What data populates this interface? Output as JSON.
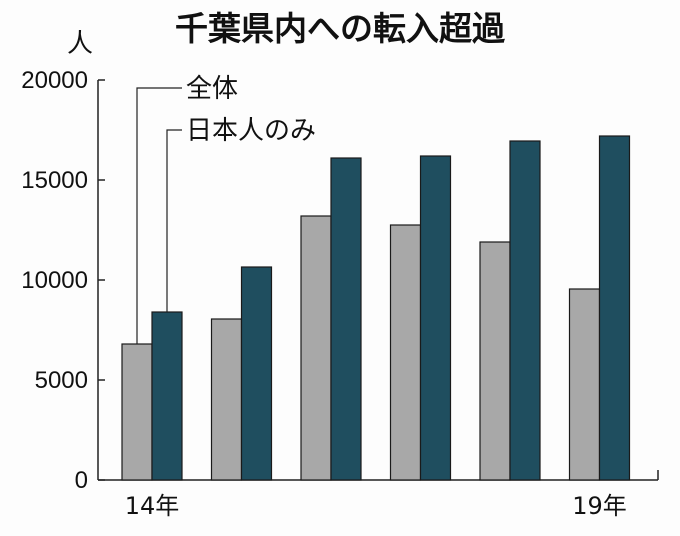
{
  "chart_data": {
    "type": "bar",
    "title": "千葉県内への転入超過",
    "ylabel": "人",
    "xlabel": "",
    "categories": [
      "14年",
      "",
      "",
      "",
      "",
      "19年"
    ],
    "ylim": [
      0,
      20000
    ],
    "yticks": [
      "0",
      "5000",
      "10000",
      "15000",
      "20000"
    ],
    "series": [
      {
        "name": "全体",
        "values": [
          6800,
          8050,
          13200,
          12750,
          11900,
          9550
        ],
        "color": "#a8a8a8"
      },
      {
        "name": "日本人のみ",
        "values": [
          8400,
          10650,
          16100,
          16200,
          16950,
          17200
        ],
        "color": "#1f4e5f"
      }
    ],
    "grid": false,
    "legend_placement": "top-left"
  }
}
